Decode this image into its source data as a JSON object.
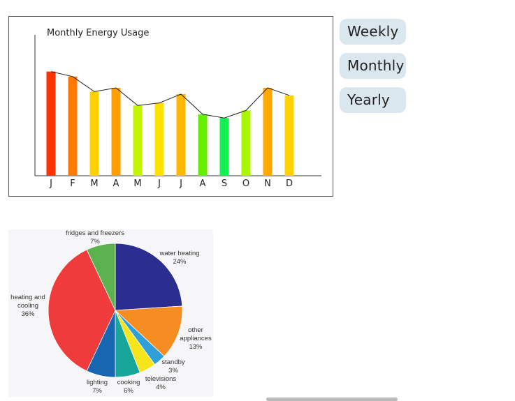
{
  "buttons": {
    "weekly": "Weekly",
    "monthly": "Monthly",
    "yearly": "Yearly"
  },
  "chart_data": [
    {
      "type": "bar",
      "title": "Monthly Energy Usage",
      "categories": [
        "J",
        "F",
        "M",
        "A",
        "M",
        "J",
        "J",
        "A",
        "S",
        "O",
        "N",
        "D"
      ],
      "values": [
        0.83,
        0.79,
        0.67,
        0.7,
        0.56,
        0.58,
        0.65,
        0.49,
        0.46,
        0.52,
        0.7,
        0.64
      ],
      "colors": [
        "#ff3300",
        "#ff7a00",
        "#ffd200",
        "#ff9e00",
        "#c3f500",
        "#ffe100",
        "#ffb800",
        "#66ef00",
        "#15ef50",
        "#a9f500",
        "#ffa800",
        "#ffd200"
      ],
      "trend_line": true,
      "ylim": [
        0,
        1
      ]
    },
    {
      "type": "pie",
      "slices": [
        {
          "label": "water heating",
          "percent": "24%",
          "value": 24,
          "color": "#2b2d8f"
        },
        {
          "label": "other appliances",
          "percent": "13%",
          "value": 13,
          "color": "#f68d23"
        },
        {
          "label": "standby",
          "percent": "3%",
          "value": 3,
          "color": "#2f9fd8"
        },
        {
          "label": "televisions",
          "percent": "4%",
          "value": 4,
          "color": "#f7e51b"
        },
        {
          "label": "cooking",
          "percent": "6%",
          "value": 6,
          "color": "#17a699"
        },
        {
          "label": "lighting",
          "percent": "7%",
          "value": 7,
          "color": "#1866b2"
        },
        {
          "label": "heating and cooling",
          "percent": "36%",
          "value": 36,
          "color": "#ef3b3b"
        },
        {
          "label": "fridges and freezers",
          "percent": "7%",
          "value": 7,
          "color": "#5cb24f"
        }
      ]
    }
  ]
}
